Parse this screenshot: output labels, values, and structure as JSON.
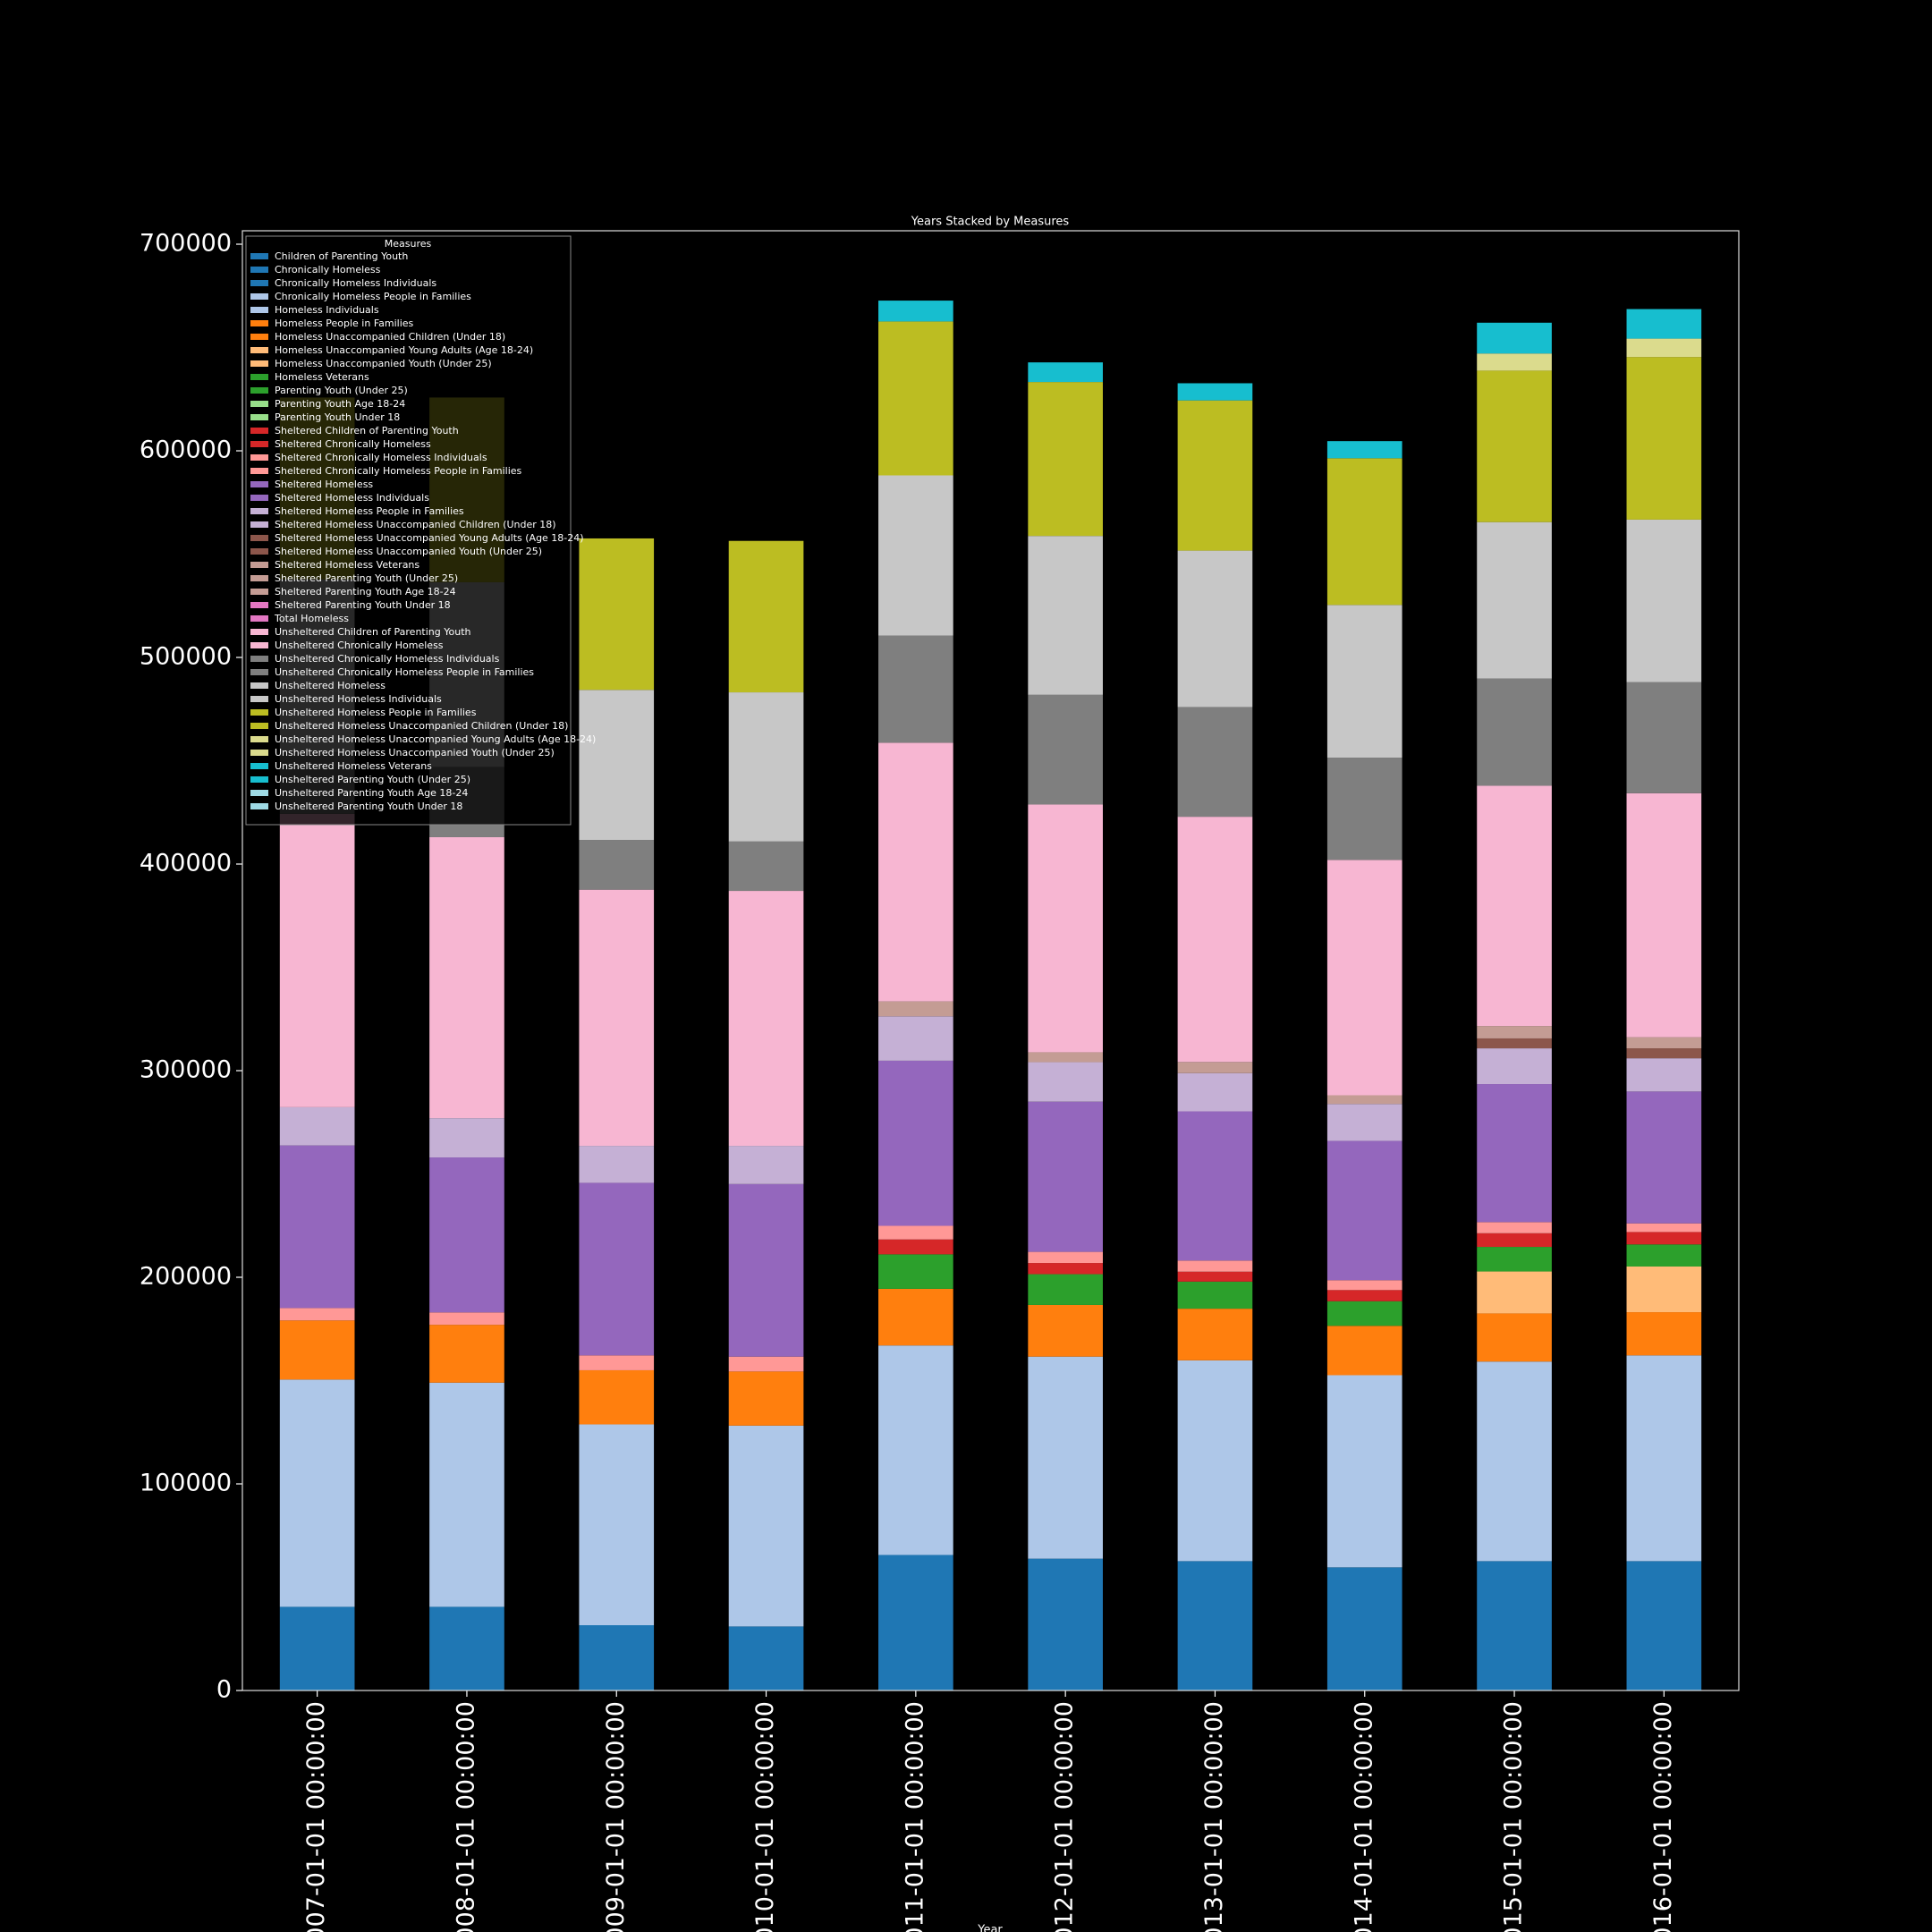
{
  "chart_data": {
    "type": "stacked-bar",
    "title": "Years Stacked by Measures",
    "x_label": "Year",
    "legend_title": "Measures",
    "legend_position": "upper left",
    "categories": [
      "2007-01-01 00:00:00",
      "2008-01-01 00:00:00",
      "2009-01-01 00:00:00",
      "2010-01-01 00:00:00",
      "2011-01-01 00:00:00",
      "2012-01-01 00:00:00",
      "2013-01-01 00:00:00",
      "2014-01-01 00:00:00",
      "2015-01-01 00:00:00",
      "2016-01-01 00:00:00"
    ],
    "ylim": [
      0,
      706500
    ],
    "yticks": [
      0,
      100000,
      200000,
      300000,
      400000,
      500000,
      600000,
      700000
    ],
    "series": [
      {
        "name": "Children of Parenting Youth",
        "color": "#1f77b4",
        "values": [
          0,
          0,
          0,
          0,
          0,
          0,
          0,
          0,
          0,
          0
        ]
      },
      {
        "name": "Chronically Homeless",
        "color": "#1f77b4",
        "values": [
          40500,
          40500,
          31600,
          31000,
          65600,
          63800,
          62600,
          59600,
          62600,
          62600
        ]
      },
      {
        "name": "Chronically Homeless Individuals",
        "color": "#1f77b4",
        "values": [
          0,
          0,
          0,
          0,
          0,
          0,
          0,
          0,
          0,
          0
        ]
      },
      {
        "name": "Chronically Homeless People in Families",
        "color": "#aec7e8",
        "values": [
          0,
          0,
          0,
          0,
          0,
          0,
          0,
          0,
          0,
          0
        ]
      },
      {
        "name": "Homeless Individuals",
        "color": "#aec7e8",
        "values": [
          110000,
          108500,
          97200,
          97200,
          101400,
          97800,
          97200,
          93000,
          96600,
          99600
        ]
      },
      {
        "name": "Homeless People in Families",
        "color": "#ff7f0e",
        "values": [
          28600,
          28000,
          26200,
          26200,
          27400,
          25000,
          25000,
          23900,
          23300,
          20900
        ]
      },
      {
        "name": "Homeless Unaccompanied Children (Under 18)",
        "color": "#ff7f0e",
        "values": [
          0,
          0,
          0,
          0,
          0,
          0,
          0,
          0,
          0,
          0
        ]
      },
      {
        "name": "Homeless Unaccompanied Young Adults (Age 18-24)",
        "color": "#ffbb78",
        "values": [
          0,
          0,
          0,
          0,
          0,
          0,
          0,
          0,
          0,
          0
        ]
      },
      {
        "name": "Homeless Unaccompanied Youth (Under 25)",
        "color": "#ffbb78",
        "values": [
          0,
          0,
          0,
          0,
          0,
          0,
          0,
          0,
          20300,
          22100
        ]
      },
      {
        "name": "Homeless Veterans",
        "color": "#2ca02c",
        "values": [
          0,
          0,
          0,
          0,
          16700,
          14900,
          13100,
          11900,
          11900,
          10700
        ]
      },
      {
        "name": "Parenting Youth (Under 25)",
        "color": "#2ca02c",
        "values": [
          0,
          0,
          0,
          0,
          0,
          0,
          0,
          0,
          0,
          0
        ]
      },
      {
        "name": "Parenting Youth Age 18-24",
        "color": "#98df8a",
        "values": [
          0,
          0,
          0,
          0,
          0,
          0,
          0,
          0,
          0,
          0
        ]
      },
      {
        "name": "Parenting Youth Under 18",
        "color": "#98df8a",
        "values": [
          0,
          0,
          0,
          0,
          0,
          0,
          0,
          0,
          0,
          0
        ]
      },
      {
        "name": "Sheltered Children of Parenting Youth",
        "color": "#d62728",
        "values": [
          0,
          0,
          0,
          0,
          0,
          0,
          0,
          0,
          0,
          0
        ]
      },
      {
        "name": "Sheltered Chronically Homeless",
        "color": "#d62728",
        "values": [
          0,
          0,
          0,
          0,
          7200,
          5400,
          4800,
          5400,
          6600,
          6000
        ]
      },
      {
        "name": "Sheltered Chronically Homeless Individuals",
        "color": "#ff9896",
        "values": [
          6000,
          6000,
          7200,
          7200,
          6600,
          5400,
          5400,
          4800,
          5400,
          4200
        ]
      },
      {
        "name": "Sheltered Chronically Homeless People in Families",
        "color": "#ff9896",
        "values": [
          0,
          0,
          0,
          0,
          0,
          0,
          0,
          0,
          0,
          0
        ]
      },
      {
        "name": "Sheltered Homeless",
        "color": "#9467bd",
        "values": [
          0,
          0,
          0,
          0,
          0,
          0,
          0,
          0,
          0,
          0
        ]
      },
      {
        "name": "Sheltered Homeless Individuals",
        "color": "#9467bd",
        "values": [
          78700,
          75000,
          83500,
          83500,
          79900,
          72700,
          72200,
          67400,
          66800,
          63800
        ]
      },
      {
        "name": "Sheltered Homeless People in Families",
        "color": "#c5b0d5",
        "values": [
          18500,
          19000,
          17900,
          18500,
          21500,
          19100,
          18500,
          17900,
          17300,
          16100
        ]
      },
      {
        "name": "Sheltered Homeless Unaccompanied Children (Under 18)",
        "color": "#c5b0d5",
        "values": [
          0,
          0,
          0,
          0,
          0,
          0,
          0,
          0,
          0,
          0
        ]
      },
      {
        "name": "Sheltered Homeless Unaccompanied Young Adults (Age 18-24)",
        "color": "#8c564b",
        "values": [
          0,
          0,
          0,
          0,
          0,
          0,
          0,
          0,
          0,
          0
        ]
      },
      {
        "name": "Sheltered Homeless Unaccompanied Youth (Under 25)",
        "color": "#8c564b",
        "values": [
          0,
          0,
          0,
          0,
          0,
          0,
          0,
          0,
          4800,
          4800
        ]
      },
      {
        "name": "Sheltered Homeless Veterans",
        "color": "#c49c94",
        "values": [
          0,
          0,
          0,
          0,
          7200,
          4800,
          5400,
          4200,
          6000,
          5400
        ]
      },
      {
        "name": "Sheltered Parenting Youth (Under 25)",
        "color": "#c49c94",
        "values": [
          0,
          0,
          0,
          0,
          0,
          0,
          0,
          0,
          0,
          0
        ]
      },
      {
        "name": "Sheltered Parenting Youth Age 18-24",
        "color": "#c49c94",
        "values": [
          0,
          0,
          0,
          0,
          0,
          0,
          0,
          0,
          0,
          0
        ]
      },
      {
        "name": "Sheltered Parenting Youth Under 18",
        "color": "#e377c2",
        "values": [
          0,
          0,
          0,
          0,
          0,
          0,
          0,
          0,
          0,
          0
        ]
      },
      {
        "name": "Total Homeless",
        "color": "#e377c2",
        "values": [
          0,
          0,
          0,
          0,
          0,
          0,
          0,
          0,
          0,
          0
        ]
      },
      {
        "name": "Unsheltered Children of Parenting Youth",
        "color": "#f7b6d2",
        "values": [
          142000,
          136000,
          124000,
          123400,
          125200,
          119900,
          118700,
          113900,
          116300,
          118100
        ]
      },
      {
        "name": "Unsheltered Chronically Homeless",
        "color": "#f7b6d2",
        "values": [
          0,
          0,
          0,
          0,
          0,
          0,
          0,
          0,
          0,
          0
        ]
      },
      {
        "name": "Unsheltered Chronically Homeless Individuals",
        "color": "#7f7f7f",
        "values": [
          30000,
          34000,
          24000,
          23900,
          51900,
          53100,
          53100,
          49500,
          51900,
          53700
        ]
      },
      {
        "name": "Unsheltered Chronically Homeless People in Families",
        "color": "#7f7f7f",
        "values": [
          0,
          0,
          0,
          0,
          0,
          0,
          0,
          0,
          0,
          0
        ]
      },
      {
        "name": "Unsheltered Homeless",
        "color": "#c7c7c7",
        "values": [
          0,
          0,
          0,
          0,
          0,
          0,
          0,
          0,
          0,
          0
        ]
      },
      {
        "name": "Unsheltered Homeless Individuals",
        "color": "#c7c7c7",
        "values": [
          83500,
          89400,
          72700,
          72200,
          77500,
          76900,
          75700,
          73900,
          75700,
          78700
        ]
      },
      {
        "name": "Unsheltered Homeless People in Families",
        "color": "#bcbd22",
        "values": [
          88000,
          89400,
          73300,
          73300,
          74500,
          74500,
          72700,
          71000,
          73300,
          78700
        ]
      },
      {
        "name": "Unsheltered Homeless Unaccompanied Children (Under 18)",
        "color": "#bcbd22",
        "values": [
          0,
          0,
          0,
          0,
          0,
          0,
          0,
          0,
          0,
          0
        ]
      },
      {
        "name": "Unsheltered Homeless Unaccompanied Young Adults (Age 18-24)",
        "color": "#dbdb8d",
        "values": [
          0,
          0,
          0,
          0,
          0,
          0,
          0,
          0,
          0,
          0
        ]
      },
      {
        "name": "Unsheltered Homeless Unaccompanied Youth (Under 25)",
        "color": "#dbdb8d",
        "values": [
          0,
          0,
          0,
          0,
          0,
          0,
          0,
          0,
          8300,
          8900
        ]
      },
      {
        "name": "Unsheltered Homeless Veterans",
        "color": "#17becf",
        "values": [
          0,
          0,
          0,
          0,
          10100,
          9500,
          8300,
          8300,
          14900,
          14300
        ]
      },
      {
        "name": "Unsheltered Parenting Youth (Under 25)",
        "color": "#17becf",
        "values": [
          0,
          0,
          0,
          0,
          0,
          0,
          0,
          0,
          0,
          0
        ]
      },
      {
        "name": "Unsheltered Parenting Youth Age 18-24",
        "color": "#9edae5",
        "values": [
          0,
          0,
          0,
          0,
          0,
          0,
          0,
          0,
          0,
          0
        ]
      },
      {
        "name": "Unsheltered Parenting Youth Under 18",
        "color": "#9edae5",
        "values": [
          0,
          0,
          0,
          0,
          0,
          0,
          0,
          0,
          0,
          0
        ]
      }
    ]
  }
}
